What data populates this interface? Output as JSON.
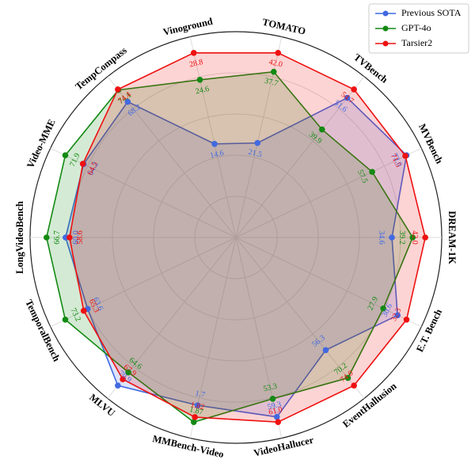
{
  "chart_data": {
    "type": "radar",
    "categories": [
      "Vinoground",
      "TOMATO",
      "TVBench",
      "MVBench",
      "DREAM-1K",
      "E.T. Bench",
      "EventHallusion",
      "VideoHallucer",
      "MMBench-Video",
      "MLVU",
      "TemporalBench",
      "LongVideoBench",
      "Video-MME",
      "TempCompass"
    ],
    "series": [
      {
        "name": "Previous SOTA",
        "color": "#4169e1",
        "values": [
          14.6,
          21.5,
          51.6,
          72.0,
          34.6,
          30.6,
          56.3,
          59.3,
          1.7,
          70.9,
          63.6,
          60.0,
          64.2,
          68.2
        ],
        "value_labels": [
          "14.6",
          "21.5",
          "51.6",
          "72.0",
          "34.6",
          "30.6",
          "56.3",
          "59.3",
          "1.7",
          "70.9",
          "63.6",
          "60.0",
          "64.2",
          "68.2"
        ]
      },
      {
        "name": "GPT-4o",
        "color": "#138a13",
        "values": [
          24.6,
          37.7,
          39.9,
          57.5,
          39.2,
          27.9,
          70.2,
          53.3,
          1.87,
          64.6,
          73.2,
          66.7,
          71.9,
          74.1
        ],
        "value_labels": [
          "24.6",
          "37.7",
          "39.9",
          "57.5",
          "39.2",
          "27.9",
          "70.2",
          "53.3",
          "1.87",
          "64.6",
          "73.2",
          "66.7",
          "71.9",
          "74.1"
        ]
      },
      {
        "name": "Tarsier2",
        "color": "#ee1111",
        "values": [
          28.8,
          42.0,
          54.7,
          71.5,
          42.0,
          32.3,
          74.0,
          61.0,
          1.82,
          67.9,
          65.3,
          58.6,
          64.5,
          74.4
        ],
        "value_labels": [
          "28.8",
          "42.0",
          "54.7",
          "71.5",
          "42.0",
          "32.3",
          "74.0",
          "61.0",
          "1.82",
          "67.9",
          "65.3",
          "58.6",
          "64.5",
          "74.4"
        ]
      }
    ],
    "legend": "upper right"
  }
}
